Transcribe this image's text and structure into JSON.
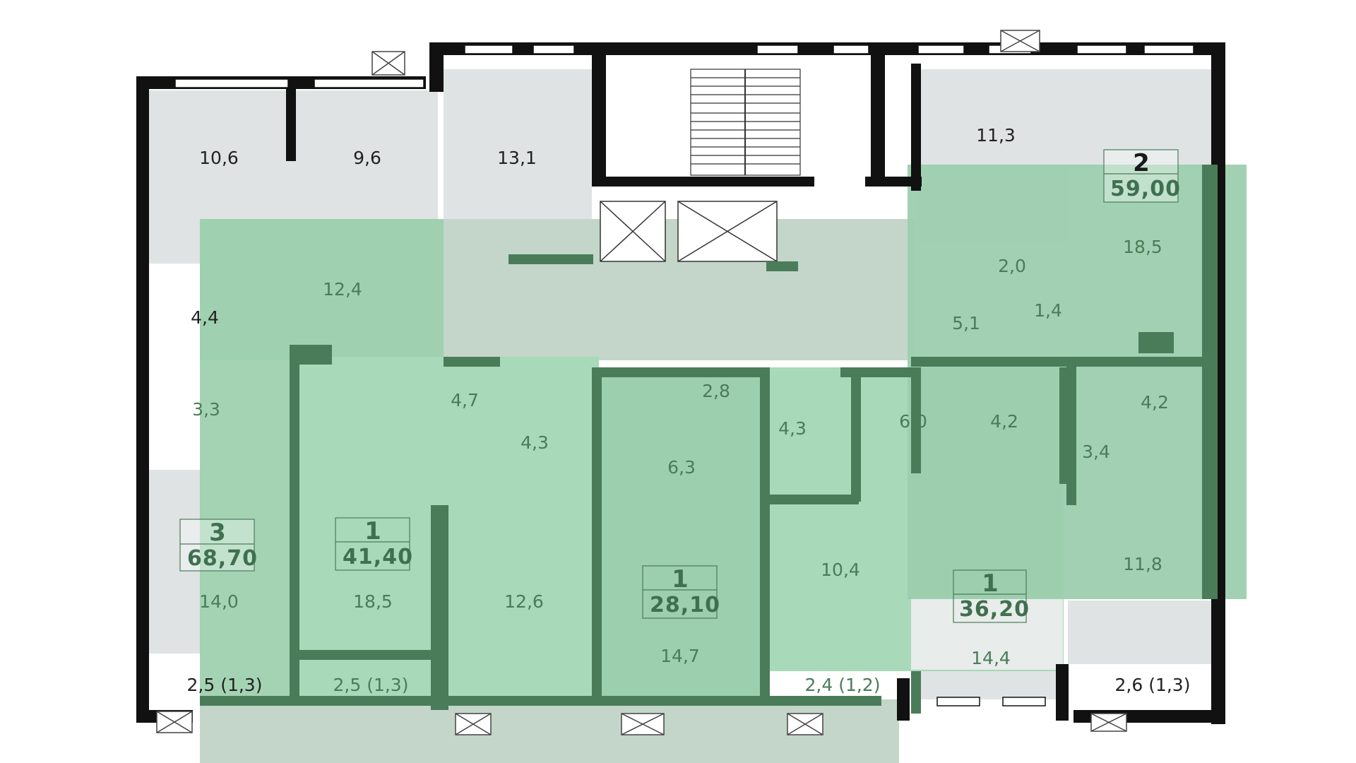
{
  "colors": {
    "wall": "#111111",
    "green_wall": "#4a7c5a",
    "room_fill": "#dfe3e3",
    "highlight_light": "#a8d9b8",
    "highlight_mid": "#9ccfae",
    "corridor": "#c3d6c9",
    "label_dark": "#222222",
    "label_green": "#4a7c5a"
  },
  "rooms": {
    "r1": "10,6",
    "r2": "9,6",
    "r3": "13,1",
    "r4": "11,3",
    "r5": "18,5",
    "r6": "12,4",
    "r7": "4,4",
    "r8": "3,3",
    "r9": "2,0",
    "r10": "1,4",
    "r11": "5,1",
    "r12": "4,7",
    "r13": "4,3",
    "r14": "2,8",
    "r15": "4,3",
    "r16": "6,0",
    "r17": "4,2",
    "r18": "4,2",
    "r19": "3,4",
    "r20": "6,3",
    "r21": "14,0",
    "r22": "18,5",
    "r23": "12,6",
    "r24": "10,4",
    "r25": "11,8",
    "r26": "14,7",
    "r27": "14,4"
  },
  "balconies": {
    "b1": "2,5 (1,3)",
    "b2": "2,5 (1,3)",
    "b3": "2,4 (1,2)",
    "b4": "2,6 (1,3)"
  },
  "apartments": {
    "a3": {
      "rooms": "3",
      "area": "68,70"
    },
    "a1a": {
      "rooms": "1",
      "area": "41,40"
    },
    "a1b": {
      "rooms": "1",
      "area": "28,10"
    },
    "a1c": {
      "rooms": "1",
      "area": "36,20"
    },
    "a2": {
      "rooms": "2",
      "area": "59,00"
    }
  }
}
